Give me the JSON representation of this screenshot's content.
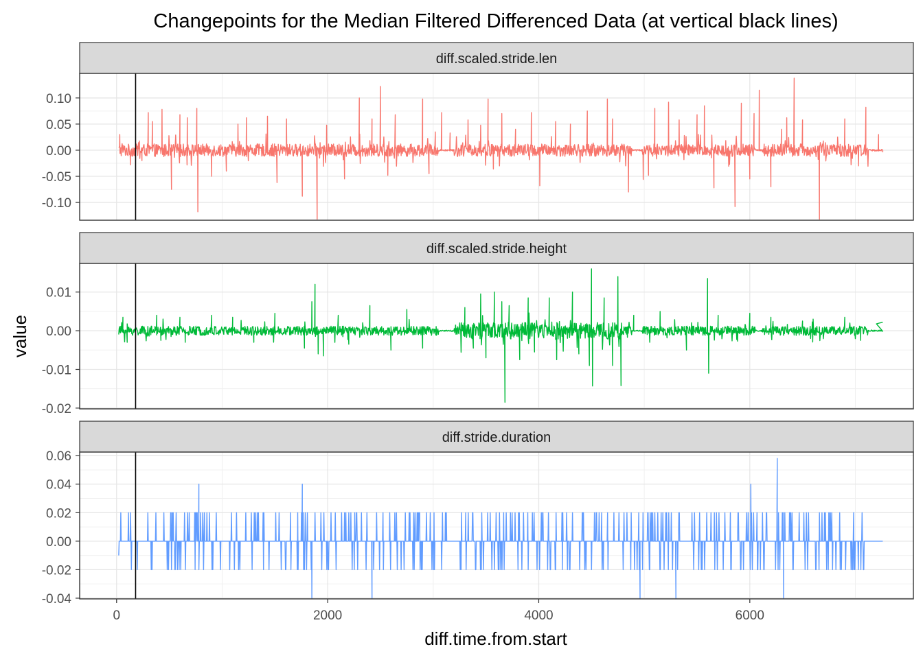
{
  "chart_data": {
    "type": "line",
    "title": "Changepoints for the Median Filtered Differenced Data (at vertical black lines)",
    "xlabel": "diff.time.from.start",
    "ylabel": "value",
    "xlim": [
      -350,
      7550
    ],
    "x_ticks": [
      0,
      2000,
      4000,
      6000
    ],
    "x_tick_labels": [
      "0",
      "2000",
      "4000",
      "6000"
    ],
    "changepoints_x": [
      180
    ],
    "grid": true,
    "legend": "none",
    "x_start": 20,
    "x_end": 7260,
    "panels": [
      {
        "strip": "diff.scaled.stride.len",
        "color": "#F8766D",
        "ylim": [
          -0.134,
          0.147
        ],
        "y_ticks": [
          0.1,
          0.05,
          0.0,
          -0.05,
          -0.1
        ],
        "y_tick_labels": [
          "0.10",
          "0.05",
          "0.00",
          "-0.05",
          "-0.10"
        ],
        "base_amplitude": 0.012,
        "spikes": [
          [
            30,
            0.03
          ],
          [
            130,
            -0.028
          ],
          [
            240,
            -0.02
          ],
          [
            300,
            0.072
          ],
          [
            340,
            0.055
          ],
          [
            430,
            0.078
          ],
          [
            520,
            -0.075
          ],
          [
            600,
            0.068
          ],
          [
            670,
            0.062
          ],
          [
            760,
            0.08
          ],
          [
            770,
            -0.118
          ],
          [
            900,
            -0.05
          ],
          [
            1040,
            -0.04
          ],
          [
            1150,
            0.05
          ],
          [
            1230,
            0.062
          ],
          [
            1430,
            0.065
          ],
          [
            1520,
            -0.062
          ],
          [
            1610,
            0.06
          ],
          [
            1760,
            -0.088
          ],
          [
            1900,
            -0.132
          ],
          [
            1990,
            0.048
          ],
          [
            2160,
            -0.055
          ],
          [
            2300,
            0.1
          ],
          [
            2420,
            0.06
          ],
          [
            2500,
            0.122
          ],
          [
            2570,
            -0.048
          ],
          [
            2640,
            0.068
          ],
          [
            2900,
            0.098
          ],
          [
            2960,
            -0.045
          ],
          [
            3020,
            0.035
          ],
          [
            3080,
            0.072
          ],
          [
            3160,
            0.033
          ],
          [
            3330,
            0.058
          ],
          [
            3450,
            0.048
          ],
          [
            3520,
            0.098
          ],
          [
            3570,
            -0.036
          ],
          [
            3650,
            0.07
          ],
          [
            3780,
            0.04
          ],
          [
            3930,
            0.072
          ],
          [
            4010,
            -0.068
          ],
          [
            4160,
            0.055
          ],
          [
            4300,
            0.05
          ],
          [
            4460,
            0.075
          ],
          [
            4650,
            0.098
          ],
          [
            4700,
            0.06
          ],
          [
            4850,
            -0.08
          ],
          [
            4990,
            -0.056
          ],
          [
            5040,
            -0.048
          ],
          [
            5100,
            0.08
          ],
          [
            5230,
            0.092
          ],
          [
            5330,
            0.058
          ],
          [
            5500,
            0.068
          ],
          [
            5570,
            0.085
          ],
          [
            5660,
            -0.072
          ],
          [
            5860,
            -0.108
          ],
          [
            5920,
            0.09
          ],
          [
            6000,
            -0.055
          ],
          [
            6040,
            0.07
          ],
          [
            6090,
            0.115
          ],
          [
            6200,
            -0.07
          ],
          [
            6300,
            0.04
          ],
          [
            6350,
            0.062
          ],
          [
            6420,
            0.138
          ],
          [
            6500,
            0.058
          ],
          [
            6660,
            -0.132
          ],
          [
            6900,
            0.06
          ],
          [
            7030,
            -0.03
          ],
          [
            7100,
            0.082
          ],
          [
            7220,
            0.03
          ]
        ]
      },
      {
        "strip": "diff.scaled.stride.height",
        "color": "#00BA38",
        "ylim": [
          -0.0202,
          0.0174
        ],
        "y_ticks": [
          0.01,
          0.0,
          -0.01,
          -0.02
        ],
        "y_tick_labels": [
          "0.01",
          "0.00",
          "-0.01",
          "-0.02"
        ],
        "base_amplitude": 0.0012,
        "spikes": [
          [
            60,
            0.0035
          ],
          [
            100,
            -0.003
          ],
          [
            380,
            0.004
          ],
          [
            420,
            -0.0025
          ],
          [
            600,
            0.0035
          ],
          [
            650,
            -0.003
          ],
          [
            900,
            0.004
          ],
          [
            1100,
            0.0035
          ],
          [
            1300,
            -0.003
          ],
          [
            1500,
            0.0045
          ],
          [
            1780,
            -0.0045
          ],
          [
            1850,
            0.0075
          ],
          [
            1880,
            0.012
          ],
          [
            1910,
            -0.006
          ],
          [
            1960,
            -0.0065
          ],
          [
            2100,
            0.004
          ],
          [
            2200,
            -0.0035
          ],
          [
            2400,
            0.0065
          ],
          [
            2600,
            -0.005
          ],
          [
            2750,
            0.0055
          ],
          [
            2900,
            -0.0045
          ],
          [
            3300,
            0.006
          ],
          [
            3380,
            -0.0045
          ],
          [
            3450,
            0.0095
          ],
          [
            3500,
            -0.007
          ],
          [
            3580,
            0.01
          ],
          [
            3650,
            0.0075
          ],
          [
            3680,
            -0.0185
          ],
          [
            3720,
            0.0065
          ],
          [
            3820,
            -0.0075
          ],
          [
            3900,
            0.0085
          ],
          [
            3960,
            -0.0055
          ],
          [
            4100,
            0.0085
          ],
          [
            4170,
            -0.0075
          ],
          [
            4320,
            0.01
          ],
          [
            4380,
            -0.006
          ],
          [
            4480,
            -0.009
          ],
          [
            4500,
            0.016
          ],
          [
            4510,
            -0.0143
          ],
          [
            4620,
            0.0085
          ],
          [
            4700,
            -0.009
          ],
          [
            4750,
            0.014
          ],
          [
            4780,
            -0.0142
          ],
          [
            4900,
            0.004
          ],
          [
            5150,
            0.005
          ],
          [
            5400,
            -0.005
          ],
          [
            5600,
            0.0135
          ],
          [
            5610,
            -0.011
          ],
          [
            5700,
            0.004
          ],
          [
            6000,
            0.0045
          ],
          [
            6200,
            0.0035
          ],
          [
            6500,
            0.0025
          ],
          [
            6900,
            0.0035
          ],
          [
            7050,
            -0.0025
          ]
        ]
      },
      {
        "strip": "diff.stride.duration",
        "color": "#619CFF",
        "ylim": [
          -0.0405,
          0.0625
        ],
        "y_ticks": [
          0.06,
          0.04,
          0.02,
          0.0,
          -0.02,
          -0.04
        ],
        "y_tick_labels": [
          "0.06",
          "0.04",
          "0.02",
          "0.00",
          "-0.02",
          "-0.04"
        ],
        "base_amplitude": 0.0,
        "spikes": [
          [
            780,
            0.04
          ],
          [
            1760,
            0.04
          ],
          [
            1850,
            -0.04
          ],
          [
            2420,
            -0.04
          ],
          [
            4960,
            -0.04
          ],
          [
            5300,
            -0.04
          ],
          [
            6010,
            0.04
          ],
          [
            6260,
            0.058
          ],
          [
            6320,
            -0.04
          ]
        ]
      }
    ]
  }
}
